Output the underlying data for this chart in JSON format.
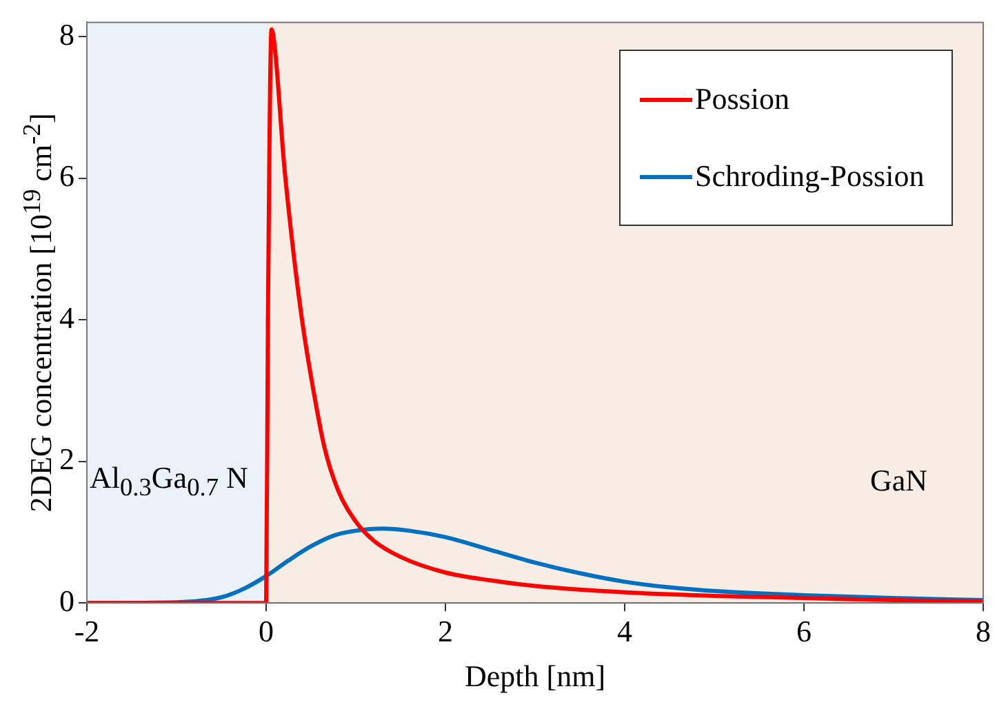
{
  "chart_data": {
    "type": "line",
    "xlabel": "Depth [nm]",
    "ylabel": "2DEG concentration [10$^{19}$ cm$^{-2}$]",
    "xlim": [
      -2,
      8
    ],
    "xticks": [
      -2,
      0,
      2,
      4,
      6,
      8
    ],
    "ylim": [
      0,
      8.2
    ],
    "yticks": [
      0,
      2,
      4,
      6,
      8
    ],
    "grid": false,
    "legend": "top right",
    "marker": "none",
    "line_style": "solid",
    "bands": [
      {
        "axis": "x",
        "from": -2,
        "to": 0,
        "label": "Al$_{0.3}$Ga$_{0.7}$ N",
        "color": "#eaf1f8"
      },
      {
        "axis": "x",
        "from": 0,
        "to": 8,
        "label": "GaN",
        "color": "#f8ede4"
      }
    ],
    "series": [
      {
        "name": "Possion",
        "color": "#ff0000",
        "x": [
          -2,
          -0.01,
          0,
          0.02,
          0.06,
          0.1,
          0.2,
          0.3,
          0.4,
          0.5,
          0.65,
          0.8,
          1.0,
          1.2,
          1.5,
          2,
          2.5,
          3,
          4,
          5,
          6,
          7,
          8
        ],
        "values": [
          0,
          0,
          0,
          4,
          8.1,
          7.8,
          6.2,
          5.0,
          4.0,
          3.2,
          2.2,
          1.6,
          1.15,
          0.88,
          0.65,
          0.43,
          0.32,
          0.24,
          0.15,
          0.1,
          0.07,
          0.04,
          0.02
        ]
      },
      {
        "name": "Schroding-Possion",
        "color": "#0070c0",
        "x": [
          -2,
          -1,
          -0.5,
          -0.25,
          0,
          0.25,
          0.5,
          0.75,
          1.0,
          1.3,
          1.6,
          2,
          2.5,
          3,
          3.5,
          4,
          4.5,
          5,
          6,
          7,
          8
        ],
        "values": [
          0,
          0.01,
          0.08,
          0.2,
          0.38,
          0.6,
          0.8,
          0.95,
          1.02,
          1.05,
          1.02,
          0.93,
          0.75,
          0.57,
          0.42,
          0.3,
          0.22,
          0.17,
          0.11,
          0.07,
          0.04
        ]
      }
    ]
  }
}
